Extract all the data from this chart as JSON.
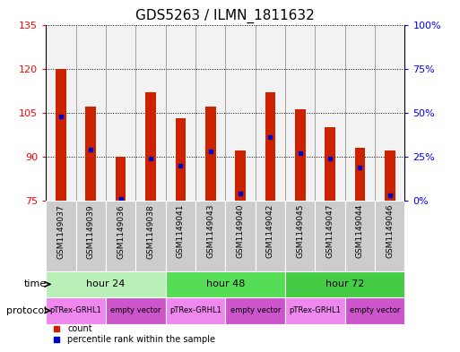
{
  "title": "GDS5263 / ILMN_1811632",
  "samples": [
    "GSM1149037",
    "GSM1149039",
    "GSM1149036",
    "GSM1149038",
    "GSM1149041",
    "GSM1149043",
    "GSM1149040",
    "GSM1149042",
    "GSM1149045",
    "GSM1149047",
    "GSM1149044",
    "GSM1149046"
  ],
  "count_values": [
    120,
    107,
    90,
    112,
    103,
    107,
    92,
    112,
    106,
    100,
    93,
    92
  ],
  "percentile_values": [
    48,
    29,
    1,
    24,
    20,
    28,
    4,
    36,
    27,
    24,
    19,
    3
  ],
  "y_min": 75,
  "y_max": 135,
  "y_ticks_left": [
    75,
    90,
    105,
    120,
    135
  ],
  "y_ticks_right": [
    0,
    25,
    50,
    75,
    100
  ],
  "time_groups": [
    {
      "label": "hour 24",
      "start": 0,
      "end": 4,
      "color": "#b8f0b8"
    },
    {
      "label": "hour 48",
      "start": 4,
      "end": 8,
      "color": "#55dd55"
    },
    {
      "label": "hour 72",
      "start": 8,
      "end": 12,
      "color": "#44cc44"
    }
  ],
  "protocol_groups": [
    {
      "label": "pTRex-GRHL1",
      "start": 0,
      "end": 2,
      "color": "#ee88ee"
    },
    {
      "label": "empty vector",
      "start": 2,
      "end": 4,
      "color": "#cc55cc"
    },
    {
      "label": "pTRex-GRHL1",
      "start": 4,
      "end": 6,
      "color": "#ee88ee"
    },
    {
      "label": "empty vector",
      "start": 6,
      "end": 8,
      "color": "#cc55cc"
    },
    {
      "label": "pTRex-GRHL1",
      "start": 8,
      "end": 10,
      "color": "#ee88ee"
    },
    {
      "label": "empty vector",
      "start": 10,
      "end": 12,
      "color": "#cc55cc"
    }
  ],
  "bar_color": "#cc2200",
  "percentile_color": "#0000cc",
  "col_bg_color": "#cccccc",
  "title_fontsize": 11,
  "tick_fontsize": 8,
  "label_fontsize": 8,
  "sample_fontsize": 6.5
}
